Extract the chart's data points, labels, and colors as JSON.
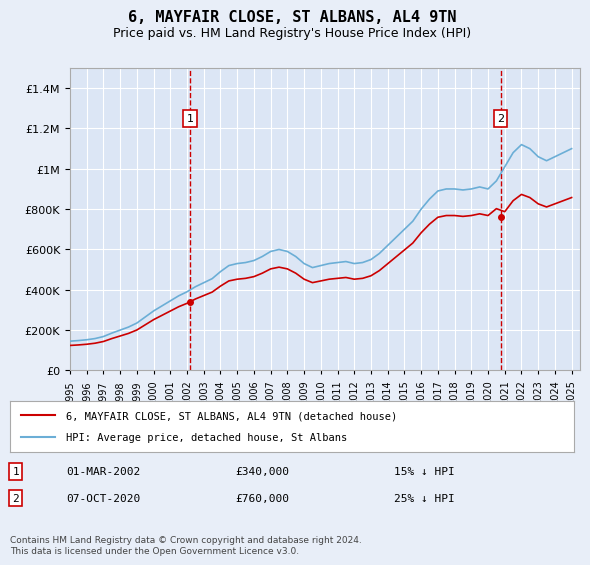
{
  "title": "6, MAYFAIR CLOSE, ST ALBANS, AL4 9TN",
  "subtitle": "Price paid vs. HM Land Registry's House Price Index (HPI)",
  "background_color": "#e8eef8",
  "plot_bg_color": "#dce6f5",
  "ylabel_color": "#222222",
  "sale1_date_str": "01-MAR-2002",
  "sale1_value": 340000,
  "sale1_hpi_diff": "15% ↓ HPI",
  "sale2_date_str": "07-OCT-2020",
  "sale2_value": 760000,
  "sale2_hpi_diff": "25% ↓ HPI",
  "legend_label_red": "6, MAYFAIR CLOSE, ST ALBANS, AL4 9TN (detached house)",
  "legend_label_blue": "HPI: Average price, detached house, St Albans",
  "footer": "Contains HM Land Registry data © Crown copyright and database right 2024.\nThis data is licensed under the Open Government Licence v3.0.",
  "hpi_color": "#6baed6",
  "sale_color": "#cc0000",
  "vline_color": "#cc0000",
  "ylim": [
    0,
    1500000
  ],
  "xlim_start": 1995.0,
  "xlim_end": 2025.5
}
